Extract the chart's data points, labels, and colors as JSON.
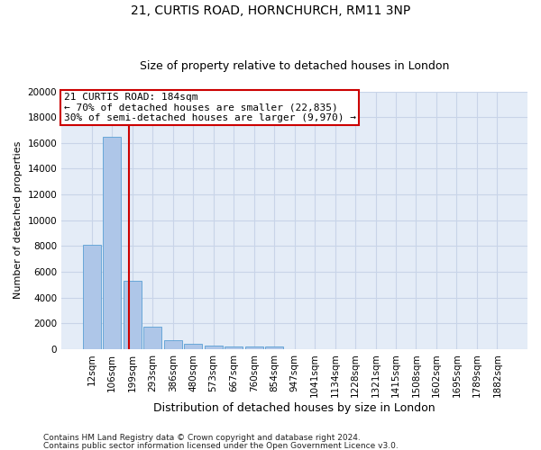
{
  "title_line1": "21, CURTIS ROAD, HORNCHURCH, RM11 3NP",
  "title_line2": "Size of property relative to detached houses in London",
  "xlabel": "Distribution of detached houses by size in London",
  "ylabel": "Number of detached properties",
  "bar_categories": [
    "12sqm",
    "106sqm",
    "199sqm",
    "293sqm",
    "386sqm",
    "480sqm",
    "573sqm",
    "667sqm",
    "760sqm",
    "854sqm",
    "947sqm",
    "1041sqm",
    "1134sqm",
    "1228sqm",
    "1321sqm",
    "1415sqm",
    "1508sqm",
    "1602sqm",
    "1695sqm",
    "1789sqm",
    "1882sqm"
  ],
  "bar_values": [
    8100,
    16500,
    5300,
    1750,
    700,
    380,
    290,
    220,
    195,
    175,
    0,
    0,
    0,
    0,
    0,
    0,
    0,
    0,
    0,
    0,
    0
  ],
  "bar_color": "#aec6e8",
  "bar_edgecolor": "#5a9fd4",
  "vline_x_index": 1.85,
  "vline_color": "#cc0000",
  "ylim": [
    0,
    20000
  ],
  "yticks": [
    0,
    2000,
    4000,
    6000,
    8000,
    10000,
    12000,
    14000,
    16000,
    18000,
    20000
  ],
  "annotation_text": "21 CURTIS ROAD: 184sqm\n← 70% of detached houses are smaller (22,835)\n30% of semi-detached houses are larger (9,970) →",
  "footnote1": "Contains HM Land Registry data © Crown copyright and database right 2024.",
  "footnote2": "Contains public sector information licensed under the Open Government Licence v3.0.",
  "grid_color": "#c8d4e8",
  "background_color": "#e4ecf7",
  "title1_fontsize": 10,
  "title2_fontsize": 9,
  "ylabel_fontsize": 8,
  "xlabel_fontsize": 9,
  "tick_fontsize": 7.5,
  "annot_fontsize": 8
}
